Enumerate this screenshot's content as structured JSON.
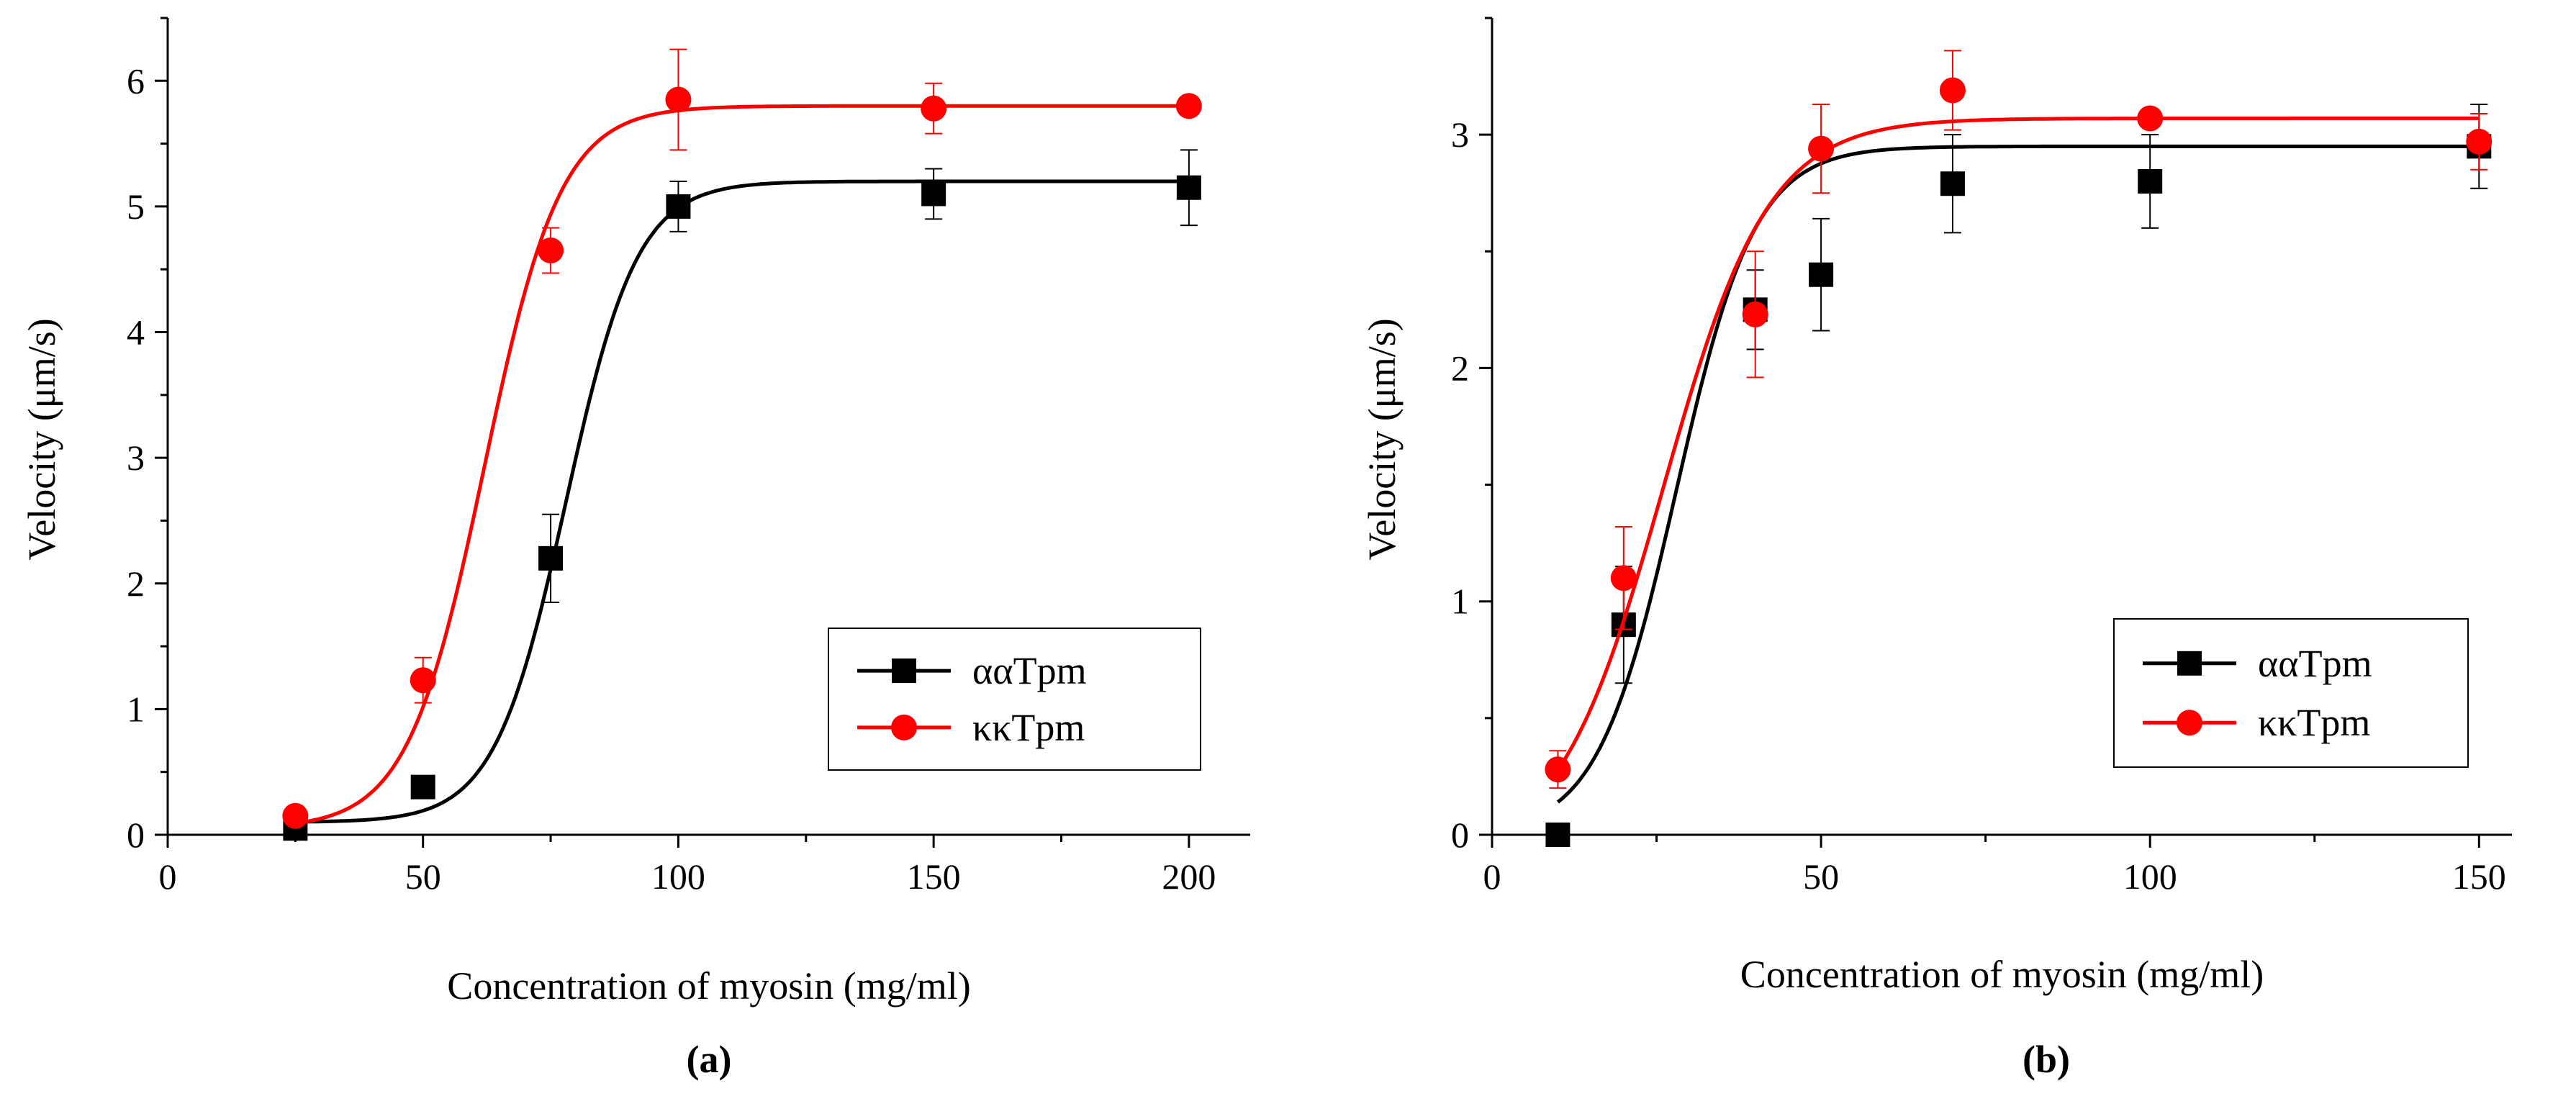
{
  "chart_data": [
    {
      "type": "line",
      "panel_label": "(a)",
      "title": "",
      "xlabel": "Concentration of myosin (mg/ml)",
      "ylabel": "Velocity (μm/s)",
      "xlim": [
        0,
        212
      ],
      "ylim": [
        0,
        6.5
      ],
      "xticks": [
        0,
        50,
        100,
        150,
        200
      ],
      "xtick_labels": [
        "0",
        "50",
        "100",
        "150",
        "200"
      ],
      "yticks": [
        0,
        1,
        2,
        3,
        4,
        5,
        6
      ],
      "ytick_labels": [
        "0",
        "1",
        "2",
        "3",
        "4",
        "5",
        "6"
      ],
      "legend_position": "lower-right",
      "series": [
        {
          "name": "ααTpm",
          "color": "#000000",
          "marker": "square",
          "x": [
            25,
            50,
            75,
            100,
            150,
            200
          ],
          "y": [
            0.05,
            0.38,
            2.2,
            5.0,
            5.1,
            5.15
          ],
          "err": [
            0,
            0,
            0.35,
            0.2,
            0.2,
            0.3
          ],
          "fit": {
            "A1": 0.1,
            "A2": 5.2,
            "x0": 78,
            "dx": 7
          }
        },
        {
          "name": "κκTpm",
          "color": "#ff0000",
          "marker": "circle",
          "x": [
            25,
            50,
            75,
            100,
            150,
            200
          ],
          "y": [
            0.15,
            1.23,
            4.65,
            5.85,
            5.78,
            5.8
          ],
          "err": [
            0,
            0.18,
            0.18,
            0.4,
            0.2,
            0
          ],
          "fit": {
            "A1": 0.05,
            "A2": 5.8,
            "x0": 62,
            "dx": 7.5
          }
        }
      ]
    },
    {
      "type": "line",
      "panel_label": "(b)",
      "title": "",
      "xlabel": "Concentration of myosin (mg/ml)",
      "ylabel": "Velocity (μm/s)",
      "xlim": [
        0,
        155
      ],
      "ylim": [
        0,
        3.5
      ],
      "xticks": [
        0,
        50,
        100,
        150
      ],
      "xtick_labels": [
        "0",
        "50",
        "100",
        "150"
      ],
      "yticks": [
        0,
        1,
        2,
        3
      ],
      "ytick_labels": [
        "0",
        "1",
        "2",
        "3"
      ],
      "legend_position": "lower-right",
      "series": [
        {
          "name": "ααTpm",
          "color": "#000000",
          "marker": "square",
          "x": [
            10,
            20,
            40,
            50,
            70,
            100,
            150
          ],
          "y": [
            0.0,
            0.9,
            2.25,
            2.4,
            2.79,
            2.8,
            2.95
          ],
          "err": [
            0,
            0.25,
            0.17,
            0.24,
            0.21,
            0.2,
            0.18
          ],
          "fit": {
            "A1": 0.0,
            "A2": 2.95,
            "x0": 28,
            "dx": 6
          }
        },
        {
          "name": "κκTpm",
          "color": "#ff0000",
          "marker": "circle",
          "x": [
            10,
            20,
            40,
            50,
            70,
            100,
            150
          ],
          "y": [
            0.28,
            1.1,
            2.23,
            2.94,
            3.19,
            3.07,
            2.97
          ],
          "err": [
            0.08,
            0.22,
            0.27,
            0.19,
            0.17,
            0,
            0.12
          ],
          "fit": {
            "A1": -0.1,
            "A2": 3.07,
            "x0": 26,
            "dx": 8
          }
        }
      ]
    }
  ]
}
